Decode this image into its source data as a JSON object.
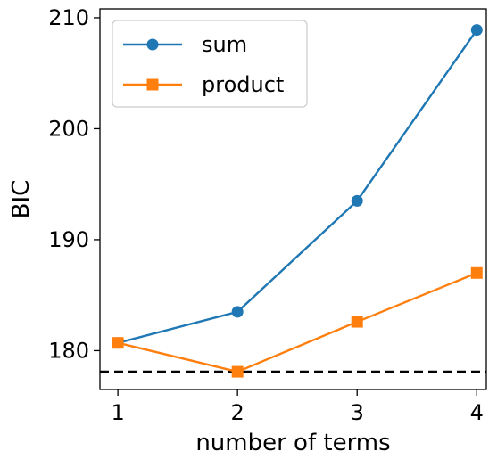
{
  "chart_data": {
    "type": "line",
    "xlabel": "number of terms",
    "ylabel": "BIC",
    "x": [
      1,
      2,
      3,
      4
    ],
    "xlim": [
      0.85,
      4.08
    ],
    "ylim": [
      176.5,
      210.8
    ],
    "xticks": [
      1,
      2,
      3,
      4
    ],
    "yticks": [
      180,
      190,
      200,
      210
    ],
    "grid": false,
    "legend_position": "top-left",
    "series": [
      {
        "name": "sum",
        "values": [
          180.7,
          183.5,
          193.5,
          208.9
        ],
        "color": "#1f77b4",
        "marker": "circle"
      },
      {
        "name": "product",
        "values": [
          180.7,
          178.1,
          182.6,
          187.0
        ],
        "color": "#ff7f0e",
        "marker": "square"
      }
    ],
    "reference_line": {
      "y": 178.1,
      "style": "dashed",
      "color": "#000000"
    }
  }
}
